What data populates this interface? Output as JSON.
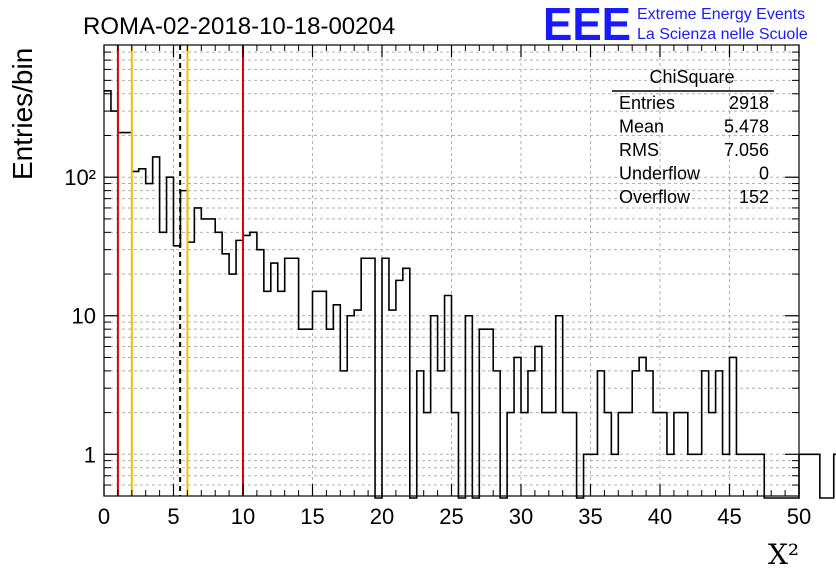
{
  "title": "ROMA-02-2018-10-18-00204",
  "logo": {
    "mark": "EEE",
    "line1": "Extreme Energy Events",
    "line2": "La Scienza nelle Scuole",
    "color": "#1a1aff"
  },
  "stats": {
    "name": "ChiSquare",
    "rows": [
      {
        "label": "Entries",
        "value": "2918"
      },
      {
        "label": "Mean",
        "value": "5.478"
      },
      {
        "label": "RMS",
        "value": "7.056"
      },
      {
        "label": "Underflow",
        "value": "0"
      },
      {
        "label": "Overflow",
        "value": "152"
      }
    ]
  },
  "chart_data": {
    "type": "histogram",
    "ylabel": "Entries/bin",
    "xlabel": "X²",
    "xlim": [
      0,
      50
    ],
    "ylim": [
      0.5,
      900
    ],
    "yscale": "log",
    "grid": true,
    "bin_width": 0.5,
    "x_ticks": [
      0,
      5,
      10,
      15,
      20,
      25,
      30,
      35,
      40,
      45,
      50
    ],
    "y_ticks": [
      {
        "value": 1,
        "label": "1"
      },
      {
        "value": 10,
        "label": "10"
      },
      {
        "value": 100,
        "label": "10²"
      }
    ],
    "values": [
      420,
      300,
      210,
      210,
      110,
      115,
      90,
      140,
      40,
      100,
      32,
      80,
      34,
      60,
      50,
      50,
      40,
      28,
      20,
      35,
      38,
      40,
      30,
      15,
      24,
      15,
      26,
      26,
      8,
      8,
      15,
      15,
      8,
      12,
      4,
      10,
      11,
      26,
      26,
      0,
      26,
      11,
      18,
      22,
      0,
      4,
      2,
      10,
      4,
      14,
      2,
      0,
      10,
      0,
      8,
      8,
      4,
      0,
      2,
      5,
      2,
      4,
      6,
      2,
      2,
      10,
      2,
      2,
      0,
      1,
      1,
      4,
      2,
      1,
      2,
      2,
      4,
      5,
      4,
      2,
      2,
      1,
      2,
      2,
      1,
      1,
      4,
      2,
      4,
      1,
      5,
      1,
      1,
      1,
      1,
      0,
      0,
      0,
      0,
      0,
      1,
      1,
      1,
      0,
      0,
      1,
      1,
      0,
      0,
      1,
      1,
      3,
      1,
      1,
      0,
      1,
      1,
      0,
      1,
      1,
      1,
      0,
      0,
      0,
      0,
      0,
      0,
      0,
      0,
      0,
      0,
      0,
      0,
      0,
      0,
      1,
      1,
      1
    ],
    "vlines": [
      {
        "x": 1,
        "color": "#e00000",
        "style": "solid"
      },
      {
        "x": 2,
        "color": "#f0c000",
        "style": "solid"
      },
      {
        "x": 5.478,
        "color": "#000000",
        "style": "dashed"
      },
      {
        "x": 6,
        "color": "#f0c000",
        "style": "solid"
      },
      {
        "x": 10,
        "color": "#e00000",
        "style": "solid"
      }
    ]
  }
}
